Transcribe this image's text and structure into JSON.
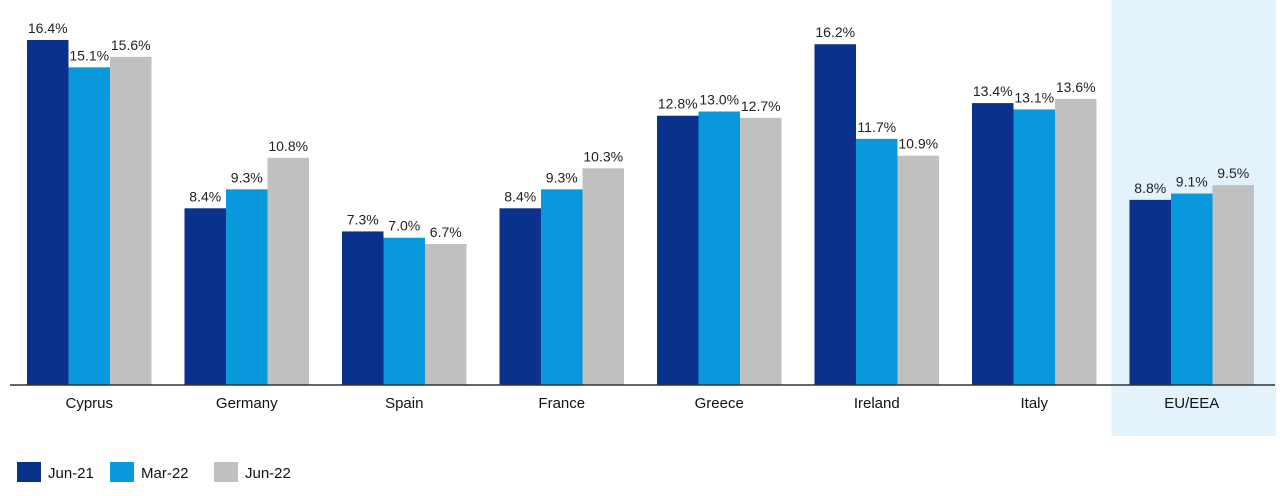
{
  "chart_data": {
    "type": "bar",
    "title": "",
    "xlabel": "",
    "ylabel": "",
    "ylim": [
      0,
      17
    ],
    "grid": false,
    "legend_position": "bottom-left",
    "highlight_category": "EU/EEA",
    "highlight_color": "#e3f2fb",
    "categories": [
      "Cyprus",
      "Germany",
      "Spain",
      "France",
      "Greece",
      "Ireland",
      "Italy",
      "EU/EEA"
    ],
    "series": [
      {
        "name": "Jun-21",
        "color": "#0a318c",
        "values": [
          16.4,
          8.4,
          7.3,
          8.4,
          12.8,
          16.2,
          13.4,
          8.8
        ],
        "labels": [
          "16.4%",
          "8.4%",
          "7.3%",
          "8.4%",
          "12.8%",
          "16.2%",
          "13.4%",
          "8.8%"
        ]
      },
      {
        "name": "Mar-22",
        "color": "#0898db",
        "values": [
          15.1,
          9.3,
          7.0,
          9.3,
          13.0,
          11.7,
          13.1,
          9.1
        ],
        "labels": [
          "15.1%",
          "9.3%",
          "7.0%",
          "9.3%",
          "13.0%",
          "11.7%",
          "13.1%",
          "9.1%"
        ]
      },
      {
        "name": "Jun-22",
        "color": "#c0c0c0",
        "values": [
          15.6,
          10.8,
          6.7,
          10.3,
          12.7,
          10.9,
          13.6,
          9.5
        ],
        "labels": [
          "15.6%",
          "10.8%",
          "6.7%",
          "10.3%",
          "12.7%",
          "10.9%",
          "13.6%",
          "9.5%"
        ]
      }
    ]
  }
}
